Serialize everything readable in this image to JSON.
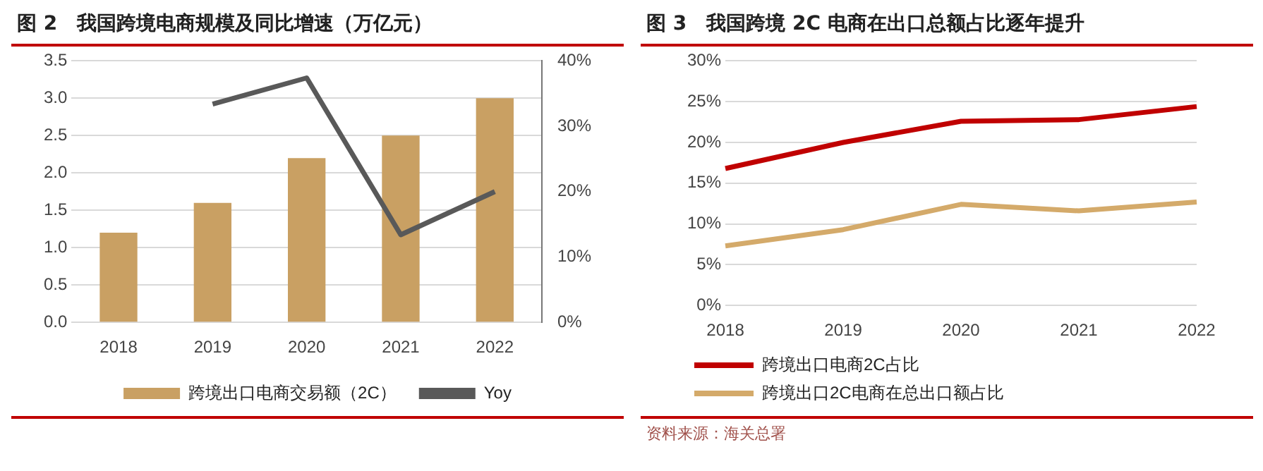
{
  "chart_data": [
    {
      "type": "bar",
      "title": "图 2　我国跨境电商规模及同比增速（万亿元）",
      "categories": [
        "2018",
        "2019",
        "2020",
        "2021",
        "2022"
      ],
      "series": [
        {
          "name": "跨境出口电商交易额（2C）",
          "color": "#c9a063",
          "values": [
            1.2,
            1.6,
            2.2,
            2.5,
            3.0
          ]
        },
        {
          "name": "Yoy",
          "type": "line",
          "axis": "y2",
          "color": "#595959",
          "values": [
            null,
            33.4,
            37.4,
            13.4,
            20.0
          ]
        }
      ],
      "ylim": [
        0,
        3.5
      ],
      "yticks": [
        {
          "value": 0,
          "label": "0.0"
        },
        {
          "value": 0.5,
          "label": "0.5"
        },
        {
          "value": 1,
          "label": "1.0"
        },
        {
          "value": 1.5,
          "label": "1.5"
        },
        {
          "value": 2,
          "label": "2.0"
        },
        {
          "value": 2.5,
          "label": "2.5"
        },
        {
          "value": 3,
          "label": "3.0"
        },
        {
          "value": 3.5,
          "label": "3.5"
        }
      ],
      "y2lim": [
        0,
        40
      ],
      "y2ticks": [
        {
          "value": 0,
          "label": "0%"
        },
        {
          "value": 10,
          "label": "10%"
        },
        {
          "value": 20,
          "label": "20%"
        },
        {
          "value": 30,
          "label": "30%"
        },
        {
          "value": 40,
          "label": "40%"
        }
      ],
      "grid": "y",
      "legend": "bottom",
      "marker": "none"
    },
    {
      "type": "line",
      "title": "图 3　我国跨境 2C 电商在出口总额占比逐年提升",
      "categories": [
        "2018",
        "2019",
        "2020",
        "2021",
        "2022"
      ],
      "series": [
        {
          "name": "跨境出口电商2C占比",
          "color": "#c00000",
          "values": [
            16.8,
            20.0,
            22.6,
            22.8,
            24.4
          ]
        },
        {
          "name": "跨境出口2C电商在总出口额占比",
          "color": "#d4aa6a",
          "values": [
            7.3,
            9.3,
            12.4,
            11.6,
            12.7
          ]
        }
      ],
      "ylim": [
        0,
        30
      ],
      "yticks": [
        {
          "value": 0,
          "label": "0%"
        },
        {
          "value": 5,
          "label": "5%"
        },
        {
          "value": 10,
          "label": "10%"
        },
        {
          "value": 15,
          "label": "15%"
        },
        {
          "value": 20,
          "label": "20%"
        },
        {
          "value": 25,
          "label": "25%"
        },
        {
          "value": 30,
          "label": "30%"
        }
      ],
      "grid": "y",
      "legend": "bottom",
      "marker": "none",
      "annotations": [
        "资料来源：海关总署"
      ]
    }
  ]
}
